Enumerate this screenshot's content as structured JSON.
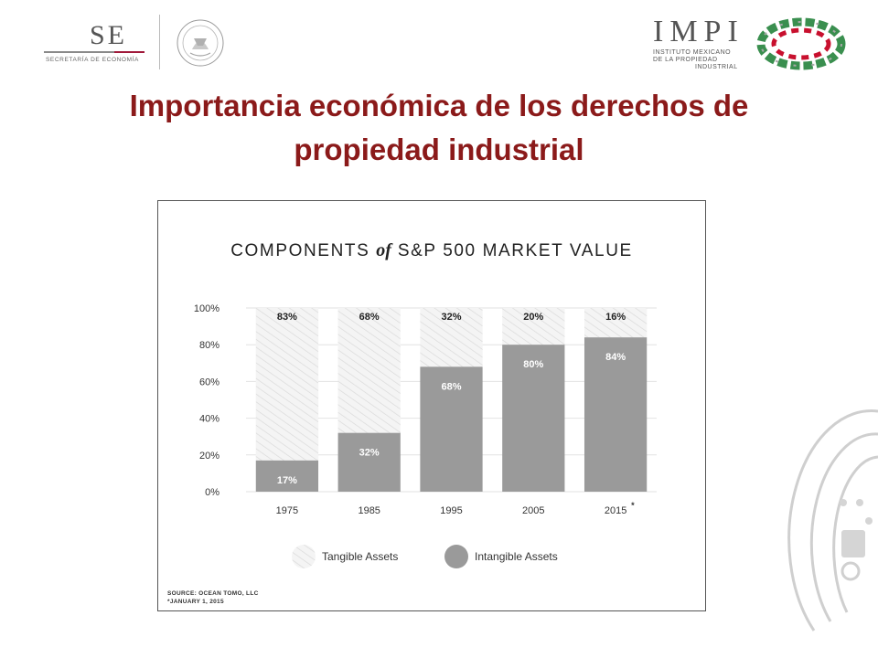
{
  "header": {
    "se_logo": {
      "letters": "SE",
      "subtitle": "SECRETARÍA DE ECONOMÍA"
    },
    "impi_logo": {
      "word": "IMPI",
      "sub_lines": [
        "INSTITUTO MEXICANO",
        "DE LA PROPIEDAD",
        "INDUSTRIAL"
      ]
    }
  },
  "title": {
    "line1": "Importancia económica de los derechos de",
    "line2": "propiedad industrial"
  },
  "chart_data": {
    "type": "bar",
    "stacked": true,
    "title_parts": {
      "before": "COMPONENTS",
      "connector": "of",
      "after": "S&P 500 MARKET VALUE"
    },
    "categories": [
      "1975",
      "1985",
      "1995",
      "2005",
      "2015"
    ],
    "category_marks": [
      "",
      "",
      "",
      "",
      "*"
    ],
    "series": [
      {
        "name": "Intangible Assets",
        "values": [
          17,
          32,
          68,
          80,
          84
        ],
        "labels": [
          "17%",
          "32%",
          "68%",
          "80%",
          "84%"
        ],
        "color": "#9a9a9a"
      },
      {
        "name": "Tangible Assets",
        "values": [
          83,
          68,
          32,
          20,
          16
        ],
        "labels": [
          "83%",
          "68%",
          "32%",
          "20%",
          "16%"
        ],
        "color": "#efefef"
      }
    ],
    "y_ticks": [
      0,
      20,
      40,
      60,
      80,
      100
    ],
    "y_tick_labels": [
      "0%",
      "20%",
      "40%",
      "60%",
      "80%",
      "100%"
    ],
    "ylim": [
      0,
      100
    ],
    "grid": true,
    "legend": {
      "placement": "bottom-center",
      "order": [
        "Tangible Assets",
        "Intangible Assets"
      ]
    },
    "notes": [
      "SOURCE: OCEAN TOMO, LLC",
      "*JANUARY 1, 2015"
    ]
  },
  "colors": {
    "title_red": "#8b1a1a",
    "intangible_gray": "#9a9a9a",
    "tangible_light": "#efefef",
    "hatch": "#d8d8d8"
  }
}
